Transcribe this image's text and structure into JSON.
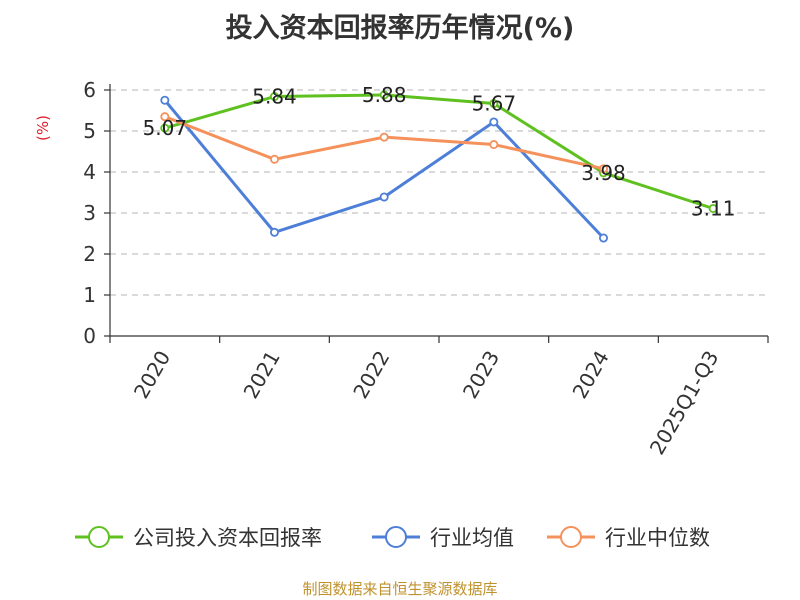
{
  "chart_data": {
    "type": "line",
    "title": "投入资本回报率历年情况(%)",
    "ylabel": "(%)",
    "categories": [
      "2020",
      "2021",
      "2022",
      "2023",
      "2024",
      "2025Q1-Q3"
    ],
    "ylim": [
      0,
      6
    ],
    "yticks": [
      "0",
      "1",
      "2",
      "3",
      "4",
      "5",
      "6"
    ],
    "grid": true,
    "legend_position": "bottom",
    "series": [
      {
        "name": "公司投入资本回报率",
        "color": "#5ec11f",
        "values": [
          5.07,
          5.84,
          5.88,
          5.67,
          3.98,
          3.11
        ],
        "data_labels": [
          "5.07",
          "5.84",
          "5.88",
          "5.67",
          "3.98",
          "3.11"
        ]
      },
      {
        "name": "行业均值",
        "color": "#4d7fd8",
        "values": [
          5.75,
          2.53,
          3.39,
          5.22,
          2.39,
          null
        ]
      },
      {
        "name": "行业中位数",
        "color": "#f5915a",
        "values": [
          5.35,
          4.31,
          4.85,
          4.67,
          4.08,
          null
        ]
      }
    ]
  },
  "source_note": "制图数据来自恒生聚源数据库"
}
